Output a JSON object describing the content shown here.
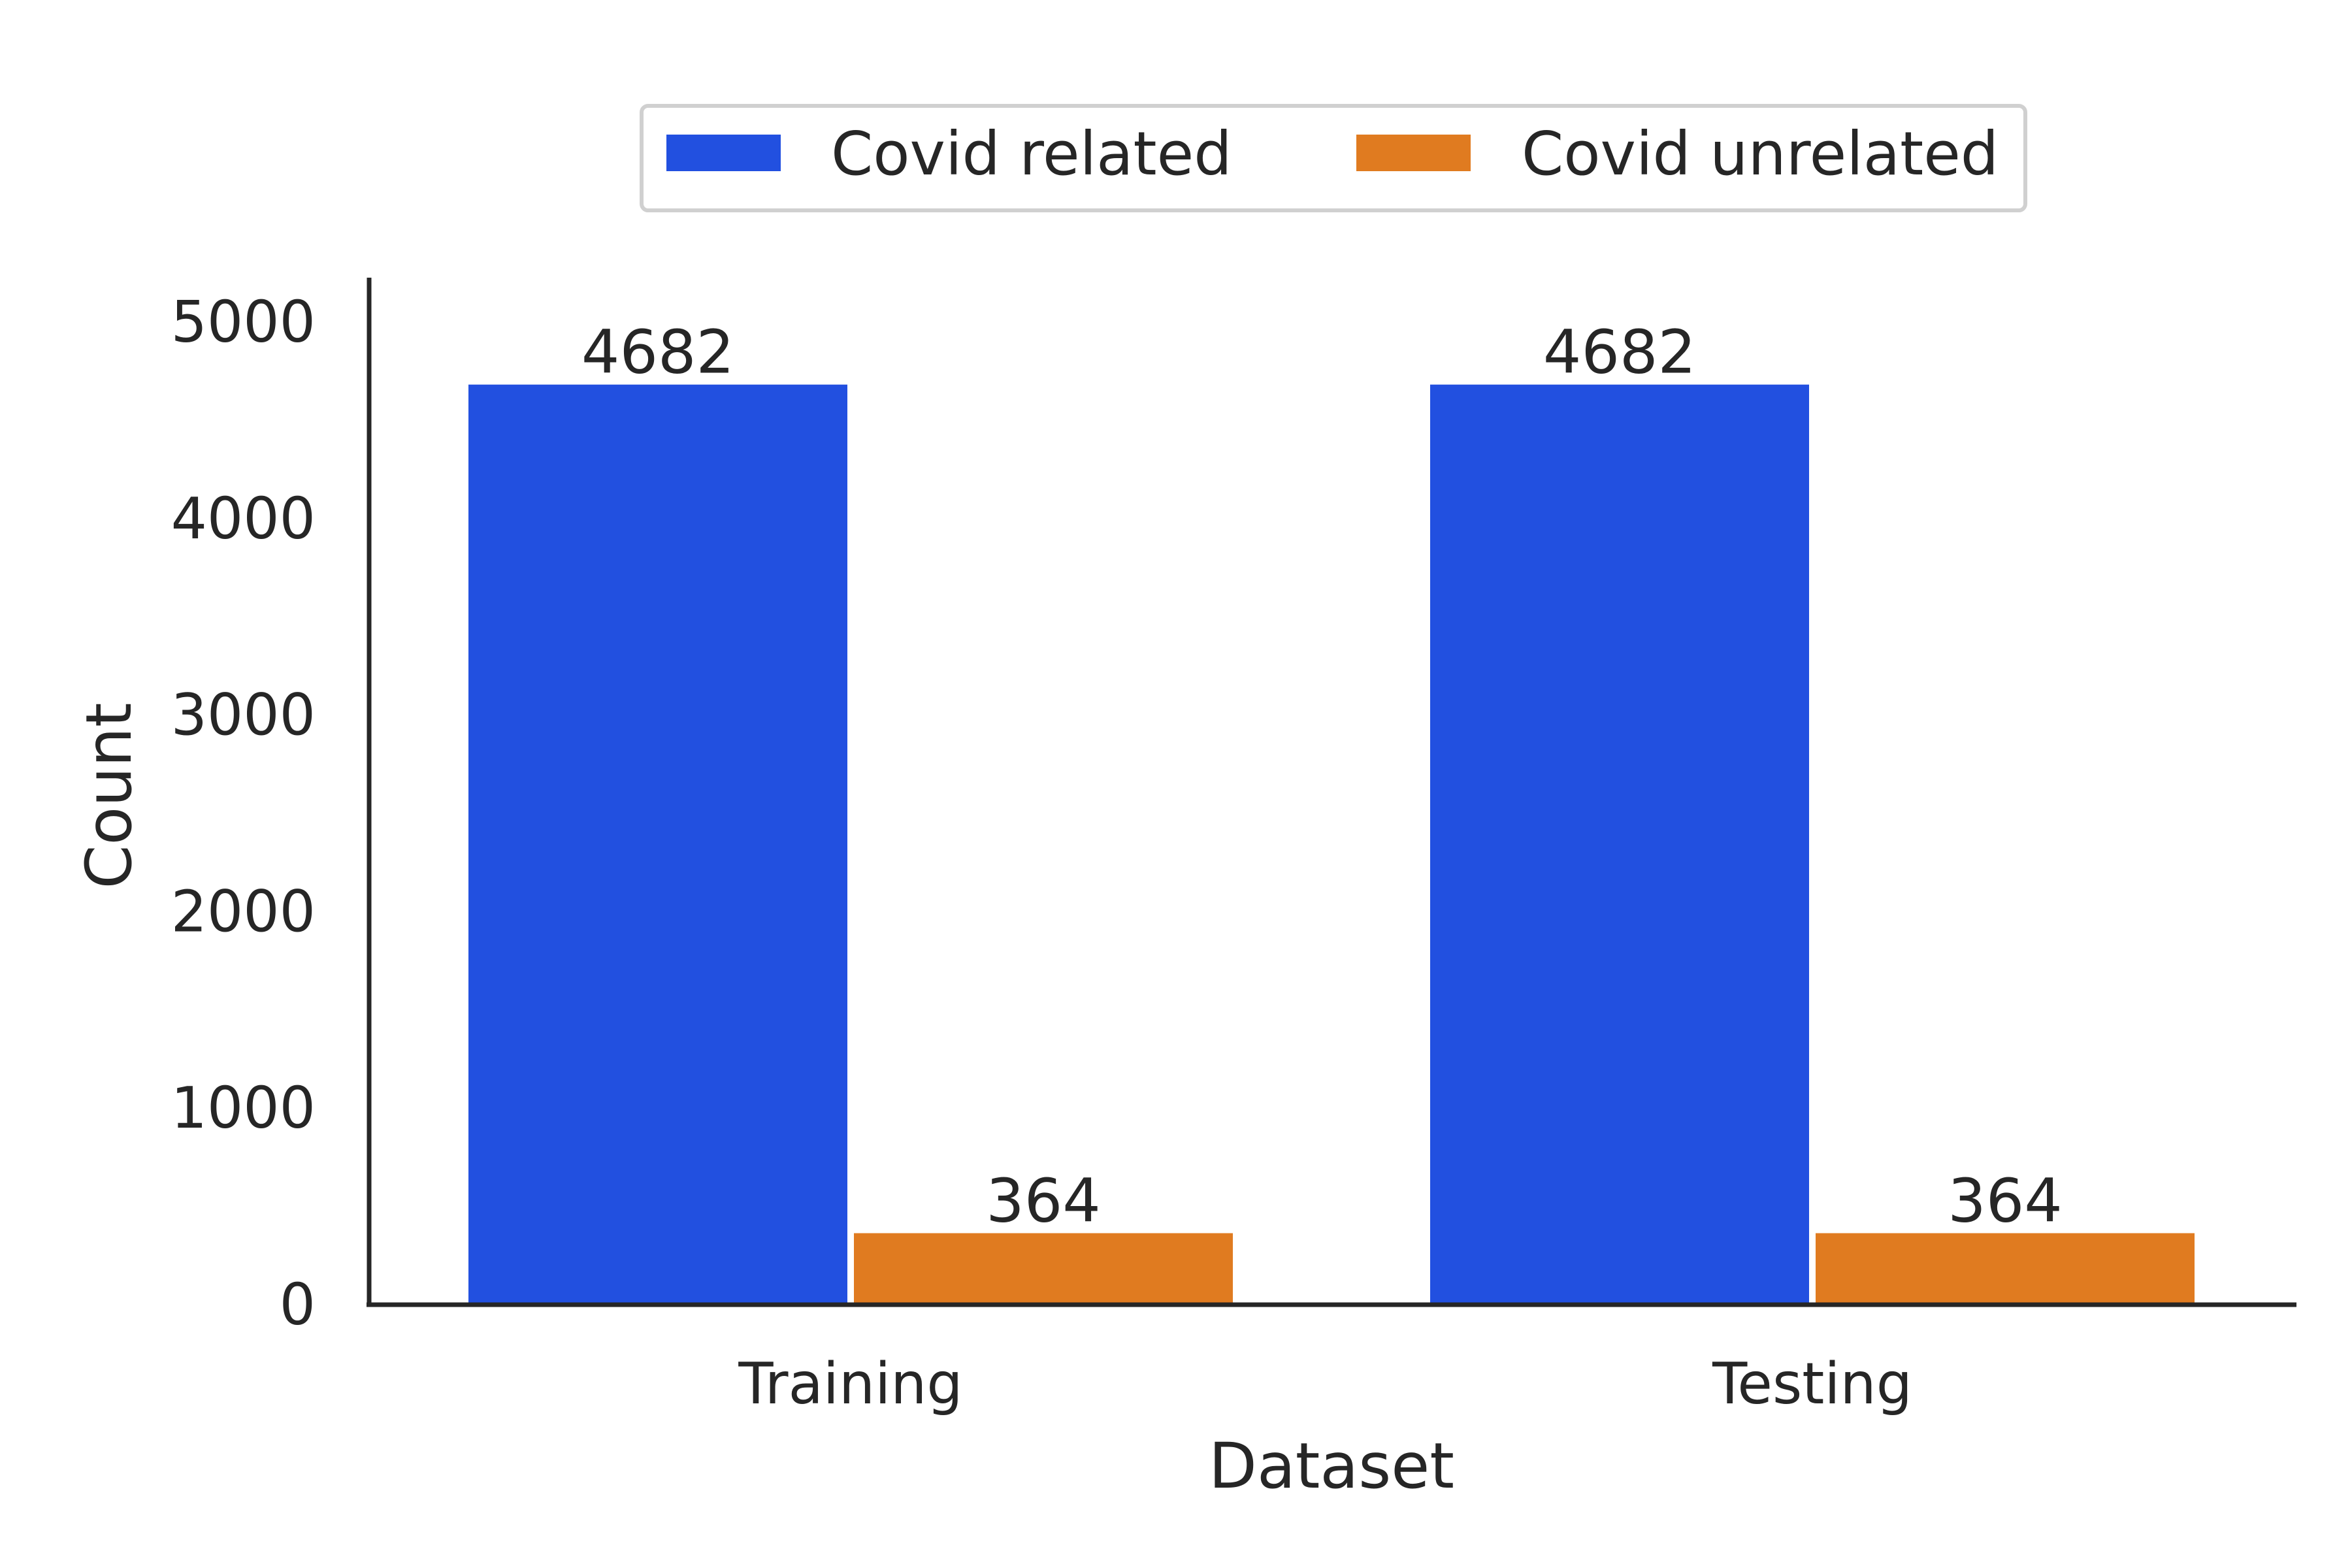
{
  "chart_data": {
    "type": "bar",
    "xlabel": "Dataset",
    "ylabel": "Count",
    "categories": [
      "Training",
      "Testing"
    ],
    "series": [
      {
        "name": "Covid related",
        "values": [
          4682,
          4682
        ],
        "color": "#2250e0"
      },
      {
        "name": "Covid unrelated",
        "values": [
          364,
          364
        ],
        "color": "#e07b20"
      }
    ],
    "ylim": [
      0,
      5200
    ],
    "yticks": [
      "0",
      "1000",
      "2000",
      "3000",
      "4000",
      "5000"
    ],
    "grid": false,
    "legend_position": "top-center",
    "data_labels": [
      "4682",
      "364",
      "4682",
      "364"
    ]
  }
}
